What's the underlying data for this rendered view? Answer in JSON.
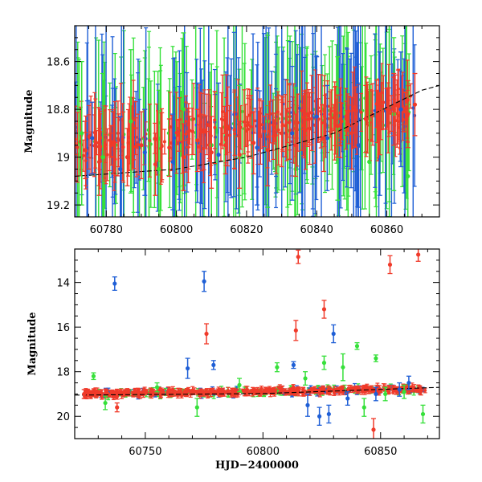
{
  "chart_data": [
    {
      "type": "scatter",
      "panel": "top",
      "title": "",
      "xlabel": "",
      "ylabel": "Magnitude",
      "xlim": [
        60771,
        60875
      ],
      "ylim": [
        19.25,
        18.45
      ],
      "y_inverted": true,
      "xticks_major": [
        60780,
        60800,
        60820,
        60840,
        60860
      ],
      "yticks_major": [
        18.6,
        18.8,
        19,
        19.2
      ],
      "yticks_labels": [
        "18.6",
        "18.8",
        "19",
        "19.2"
      ],
      "grid": false,
      "legend": "none",
      "series": [
        {
          "color": "#1f5fd6",
          "points": [
            [
              60776,
              18.92,
              0.15
            ],
            [
              60784,
              19.05,
              0.22
            ],
            [
              60791,
              18.98,
              0.18
            ],
            [
              60799,
              19.02,
              0.2
            ],
            [
              60806,
              18.94,
              0.25
            ],
            [
              60812,
              18.99,
              0.3
            ],
            [
              60823,
              18.96,
              0.24
            ],
            [
              60833,
              18.9,
              0.28
            ],
            [
              60840,
              18.83,
              0.25
            ],
            [
              60843,
              18.92,
              0.22
            ],
            [
              60852,
              18.95,
              0.26
            ],
            [
              60858,
              18.86,
              0.3
            ],
            [
              60864,
              18.8,
              0.24
            ]
          ]
        },
        {
          "color": "#36e03a",
          "points": [
            [
              60773,
              18.9,
              0.3
            ],
            [
              60779,
              19.0,
              0.35
            ],
            [
              60787,
              18.85,
              0.3
            ],
            [
              60795,
              19.05,
              0.33
            ],
            [
              60802,
              18.8,
              0.32
            ],
            [
              60810,
              18.95,
              0.34
            ],
            [
              60818,
              19.0,
              0.3
            ],
            [
              60826,
              18.85,
              0.36
            ],
            [
              60834,
              19.05,
              0.34
            ],
            [
              60846,
              18.88,
              0.3
            ],
            [
              60855,
              19.02,
              0.35
            ],
            [
              60862,
              18.82,
              0.32
            ],
            [
              60866,
              19.08,
              0.3
            ]
          ]
        },
        {
          "color": "#f03a2a",
          "points": [
            [
              60774,
              18.97,
              0.12
            ],
            [
              60778,
              19.02,
              0.14
            ],
            [
              60782,
              18.94,
              0.13
            ],
            [
              60786,
              19.0,
              0.12
            ],
            [
              60790,
              18.95,
              0.14
            ],
            [
              60794,
              19.03,
              0.13
            ],
            [
              60798,
              18.96,
              0.12
            ],
            [
              60802,
              19.0,
              0.14
            ],
            [
              60806,
              18.93,
              0.13
            ],
            [
              60810,
              18.98,
              0.15
            ],
            [
              60814,
              18.95,
              0.12
            ],
            [
              60818,
              18.99,
              0.14
            ],
            [
              60822,
              18.94,
              0.13
            ],
            [
              60826,
              18.97,
              0.15
            ],
            [
              60830,
              18.9,
              0.14
            ],
            [
              60834,
              18.95,
              0.13
            ],
            [
              60838,
              18.88,
              0.15
            ],
            [
              60842,
              18.92,
              0.14
            ],
            [
              60846,
              18.87,
              0.13
            ],
            [
              60850,
              18.9,
              0.15
            ],
            [
              60854,
              18.84,
              0.14
            ],
            [
              60858,
              18.86,
              0.13
            ],
            [
              60862,
              18.8,
              0.15
            ],
            [
              60866,
              18.82,
              0.14
            ],
            [
              60868,
              18.78,
              0.13
            ]
          ]
        }
      ]
    },
    {
      "type": "scatter",
      "panel": "bottom",
      "title": "",
      "xlabel": "HJD−2400000",
      "ylabel": "Magnitude",
      "xlim": [
        60720,
        60875
      ],
      "ylim": [
        21,
        12.5
      ],
      "y_inverted": true,
      "xticks_major": [
        60750,
        60800,
        60850
      ],
      "yticks_major": [
        14,
        16,
        18,
        20
      ],
      "yticks_labels": [
        "14",
        "16",
        "18",
        "20"
      ],
      "grid": false,
      "legend": "none",
      "series": [
        {
          "color": "#1f5fd6",
          "points": [
            [
              60737,
              14.05,
              0.3
            ],
            [
              60775,
              13.95,
              0.45
            ],
            [
              60768,
              17.85,
              0.45
            ],
            [
              60779,
              17.7,
              0.2
            ],
            [
              60813,
              17.7,
              0.15
            ],
            [
              60819,
              19.5,
              0.5
            ],
            [
              60824,
              20.0,
              0.4
            ],
            [
              60828,
              19.9,
              0.4
            ],
            [
              60830,
              16.3,
              0.4
            ],
            [
              60836,
              19.2,
              0.3
            ],
            [
              60848,
              19.0,
              0.3
            ],
            [
              60858,
              18.8,
              0.3
            ],
            [
              60862,
              18.5,
              0.3
            ]
          ]
        },
        {
          "color": "#36e03a",
          "points": [
            [
              60728,
              18.2,
              0.15
            ],
            [
              60733,
              19.4,
              0.3
            ],
            [
              60755,
              18.7,
              0.2
            ],
            [
              60772,
              19.6,
              0.4
            ],
            [
              60790,
              18.6,
              0.3
            ],
            [
              60806,
              17.8,
              0.2
            ],
            [
              60818,
              18.3,
              0.3
            ],
            [
              60826,
              17.6,
              0.3
            ],
            [
              60834,
              17.8,
              0.6
            ],
            [
              60840,
              16.85,
              0.15
            ],
            [
              60843,
              19.6,
              0.4
            ],
            [
              60848,
              17.4,
              0.15
            ],
            [
              60852,
              19.0,
              0.3
            ],
            [
              60860,
              18.9,
              0.3
            ],
            [
              60868,
              19.9,
              0.4
            ]
          ]
        },
        {
          "color": "#f03a2a",
          "points": [
            [
              60724,
              19.0,
              0.2
            ],
            [
              60738,
              19.6,
              0.2
            ],
            [
              60776,
              16.3,
              0.45
            ],
            [
              60814,
              16.15,
              0.45
            ],
            [
              60815,
              12.85,
              0.3
            ],
            [
              60826,
              15.2,
              0.4
            ],
            [
              60847,
              20.6,
              0.5
            ],
            [
              60854,
              13.2,
              0.4
            ],
            [
              60866,
              12.75,
              0.3
            ]
          ]
        }
      ],
      "trend_color": "#000000"
    }
  ]
}
